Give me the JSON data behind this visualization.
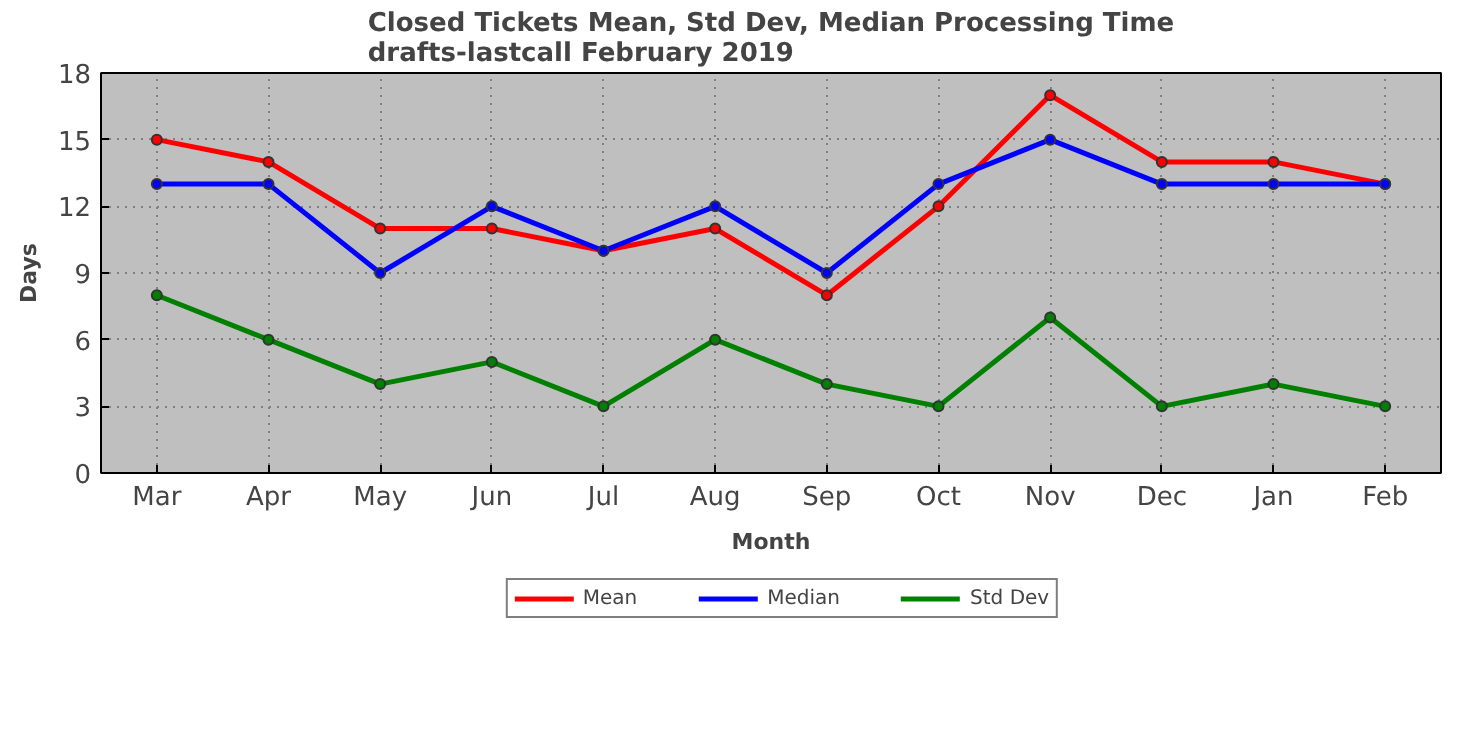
{
  "chart_data": {
    "type": "line",
    "title": "Closed Tickets Mean, Std Dev, Median Processing Time\ndrafts-lastcall February 2019",
    "xlabel": "Month",
    "ylabel": "Days",
    "categories": [
      "Mar",
      "Apr",
      "May",
      "Jun",
      "Jul",
      "Aug",
      "Sep",
      "Oct",
      "Nov",
      "Dec",
      "Jan",
      "Feb"
    ],
    "series": [
      {
        "name": "Mean",
        "color": "#ff0000",
        "values": [
          15,
          14,
          11,
          11,
          10,
          11,
          8,
          12,
          17,
          14,
          14,
          13
        ]
      },
      {
        "name": "Median",
        "color": "#0000ff",
        "values": [
          13,
          13,
          9,
          12,
          10,
          12,
          9,
          13,
          15,
          13,
          13,
          13
        ]
      },
      {
        "name": "Std Dev",
        "color": "#008000",
        "values": [
          8,
          6,
          4,
          5,
          3,
          6,
          4,
          3,
          7,
          3,
          4,
          3
        ]
      }
    ],
    "ylim": [
      0,
      18
    ],
    "yticks": [
      0,
      3,
      6,
      9,
      12,
      15,
      18
    ],
    "grid": true,
    "legend": "bottom",
    "marker": "circle",
    "line_style": "solid"
  }
}
